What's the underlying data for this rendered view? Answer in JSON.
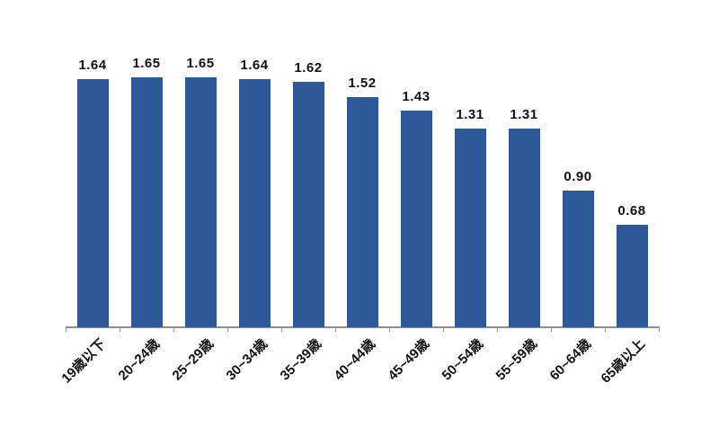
{
  "chart_data": {
    "type": "bar",
    "title": "",
    "xlabel": "",
    "ylabel": "",
    "categories": [
      "19歳以下",
      "20~24歳",
      "25~29歳",
      "30~34歳",
      "35~39歳",
      "40~44歳",
      "45~49歳",
      "50~54歳",
      "55~59歳",
      "60~64歳",
      "65歳以上"
    ],
    "values": [
      1.64,
      1.65,
      1.65,
      1.64,
      1.62,
      1.52,
      1.43,
      1.31,
      1.31,
      0.9,
      0.68
    ],
    "value_labels": [
      "1.64",
      "1.65",
      "1.65",
      "1.64",
      "1.62",
      "1.52",
      "1.43",
      "1.31",
      "1.31",
      "0.90",
      "0.68"
    ],
    "ylim": [
      0,
      1.8
    ],
    "grid": false,
    "legend": false,
    "data_labels_shown": true,
    "x_tick_rotation_deg": 45,
    "bar_color": "#2F5899",
    "axis_color": "#8f8f8f",
    "label_color": "#111111",
    "background_color": "#ffffff"
  }
}
